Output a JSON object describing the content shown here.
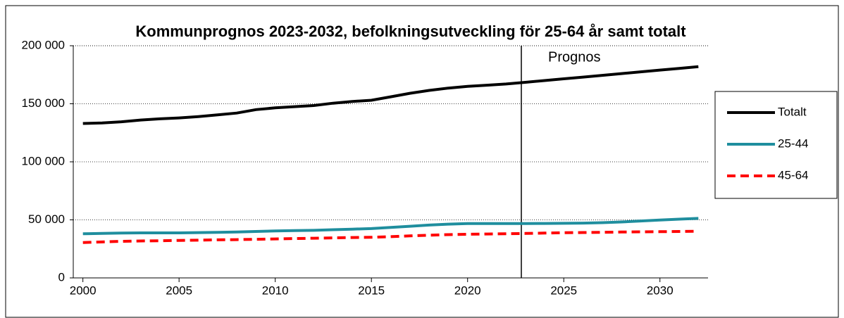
{
  "chart_data": {
    "type": "line",
    "title": "Kommunprognos 2023-2032, befolkningsutveckling för 25-64 år samt totalt",
    "annotation": "Prognos",
    "x": [
      2000,
      2001,
      2002,
      2003,
      2004,
      2005,
      2006,
      2007,
      2008,
      2009,
      2010,
      2011,
      2012,
      2013,
      2014,
      2015,
      2016,
      2017,
      2018,
      2019,
      2020,
      2021,
      2022,
      2023,
      2024,
      2025,
      2026,
      2027,
      2028,
      2029,
      2030,
      2031,
      2032
    ],
    "xlim": [
      1999.5,
      2032.5
    ],
    "xticks": [
      2000,
      2005,
      2010,
      2015,
      2020,
      2025,
      2030
    ],
    "ylim": [
      0,
      200000
    ],
    "yticks": [
      0,
      {
        "value": 50000,
        "label": "50 000"
      },
      {
        "value": 100000,
        "label": "100 000"
      },
      {
        "value": 150000,
        "label": "150 000"
      },
      {
        "value": 200000,
        "label": "200 000"
      }
    ],
    "grid": true,
    "legend": "right",
    "series": [
      {
        "name": "Totalt",
        "color": "#000000",
        "dashed": false,
        "values": [
          133000,
          133500,
          134500,
          136000,
          137000,
          137800,
          139000,
          140500,
          142000,
          145000,
          146500,
          147500,
          148500,
          150500,
          152000,
          153000,
          156000,
          159000,
          161500,
          163500,
          165000,
          166000,
          167000,
          168500,
          170000,
          171500,
          173000,
          174500,
          176000,
          177500,
          179000,
          180500,
          182000
        ]
      },
      {
        "name": "25-44",
        "color": "#1f8e9e",
        "dashed": false,
        "values": [
          38000,
          38300,
          38600,
          38800,
          38800,
          38800,
          39000,
          39300,
          39500,
          40000,
          40500,
          40800,
          41000,
          41500,
          42000,
          42500,
          43500,
          44500,
          45500,
          46300,
          46800,
          46800,
          46800,
          46800,
          46900,
          47000,
          47200,
          47600,
          48200,
          49000,
          49800,
          50600,
          51300
        ]
      },
      {
        "name": "45-64",
        "color": "#ff0000",
        "dashed": true,
        "values": [
          30500,
          31000,
          31500,
          31800,
          32000,
          32300,
          32500,
          32800,
          33000,
          33300,
          33600,
          33900,
          34200,
          34500,
          34800,
          35000,
          35500,
          36200,
          36800,
          37300,
          37600,
          37800,
          38000,
          38300,
          38600,
          38900,
          39100,
          39300,
          39500,
          39700,
          39800,
          40000,
          40200
        ]
      }
    ]
  }
}
